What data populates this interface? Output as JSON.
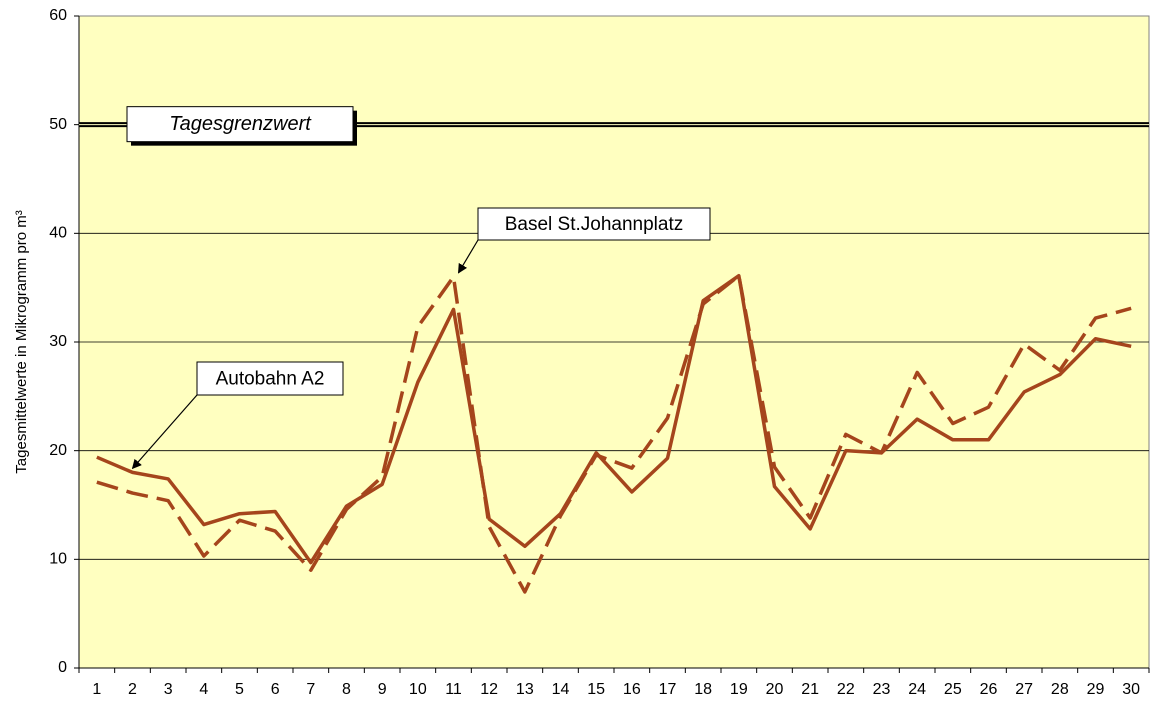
{
  "chart_data": {
    "type": "line",
    "y_label": "Tagesmittelwerte in Mikrogramm pro m³",
    "categories": [
      "1",
      "2",
      "3",
      "4",
      "5",
      "6",
      "7",
      "8",
      "9",
      "10",
      "11",
      "12",
      "13",
      "14",
      "15",
      "16",
      "17",
      "18",
      "19",
      "20",
      "21",
      "22",
      "23",
      "24",
      "25",
      "26",
      "27",
      "28",
      "29",
      "30"
    ],
    "series": [
      {
        "name": "Autobahn A2",
        "color": "#a5451c",
        "dashed": false,
        "values": [
          19.4,
          18.0,
          17.4,
          13.2,
          14.2,
          14.4,
          9.7,
          14.9,
          16.9,
          26.3,
          33.0,
          13.7,
          11.2,
          14.2,
          19.8,
          16.2,
          19.3,
          33.8,
          36.1,
          16.7,
          12.8,
          20.0,
          19.8,
          22.9,
          21.0,
          21.0,
          25.4,
          27.0,
          30.3,
          29.6
        ]
      },
      {
        "name": "Basel St.Johannplatz",
        "color": "#a5451c",
        "dashed": true,
        "values": [
          17.1,
          16.1,
          15.4,
          10.3,
          13.6,
          12.6,
          9.0,
          14.6,
          17.6,
          31.4,
          36.0,
          13.0,
          7.0,
          14.0,
          19.6,
          18.4,
          23.0,
          33.5,
          36.1,
          18.5,
          13.8,
          21.5,
          19.8,
          27.2,
          22.5,
          24.0,
          29.8,
          27.4,
          32.2,
          33.1
        ]
      }
    ],
    "reference_line": {
      "value": 50,
      "label": "Tagesgrenzwert"
    },
    "ylim": [
      0,
      60
    ],
    "yticks": [
      0,
      10,
      20,
      30,
      40,
      50,
      60
    ],
    "grid": true,
    "background": "#ffffc0"
  }
}
